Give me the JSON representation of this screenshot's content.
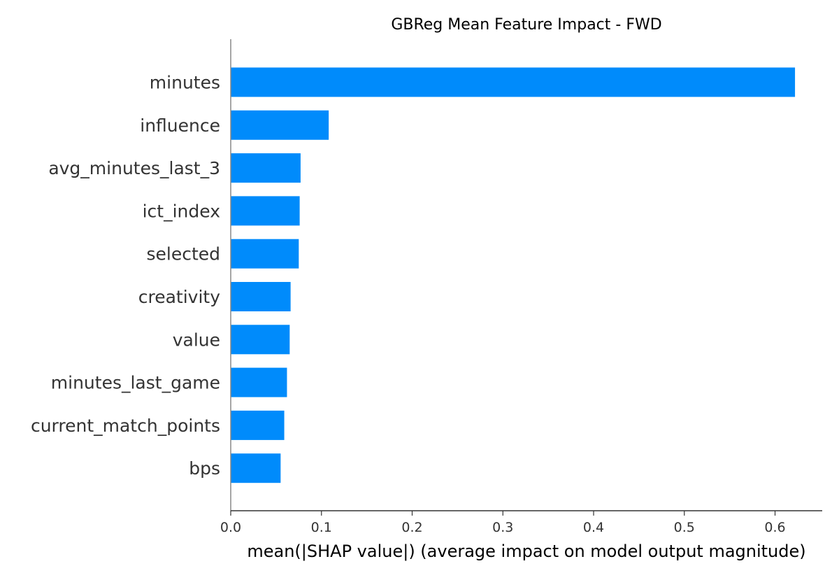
{
  "chart_data": {
    "type": "bar",
    "orientation": "horizontal",
    "title": "GBReg Mean Feature Impact - FWD",
    "xlabel": "mean(|SHAP value|) (average impact on model output magnitude)",
    "ylabel": "",
    "categories": [
      "minutes",
      "influence",
      "avg_minutes_last_3",
      "ict_index",
      "selected",
      "creativity",
      "value",
      "minutes_last_game",
      "current_match_points",
      "bps"
    ],
    "values": [
      0.622,
      0.108,
      0.077,
      0.076,
      0.075,
      0.066,
      0.065,
      0.062,
      0.059,
      0.055
    ],
    "xlim": [
      0,
      0.652
    ],
    "xticks": [
      "0.0",
      "0.1",
      "0.2",
      "0.3",
      "0.4",
      "0.5",
      "0.6"
    ],
    "grid": false,
    "bar_color": "#008bfb",
    "axis_color": "#333333",
    "spine_color": "#888888"
  }
}
